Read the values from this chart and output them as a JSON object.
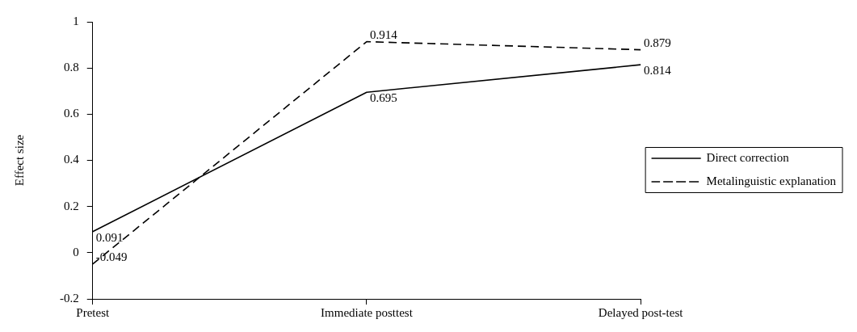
{
  "chart_data": {
    "type": "line",
    "ylabel": "Effect size",
    "categories": [
      "Pretest",
      "Immediate posttest",
      "Delayed post-test"
    ],
    "series": [
      {
        "name": "Direct correction",
        "color": "#000000",
        "line_style": "solid",
        "values": [
          0.091,
          0.695,
          0.814
        ]
      },
      {
        "name": "Metalinguistic explanation",
        "color": "#000000",
        "line_style": "dashed",
        "values": [
          -0.049,
          0.914,
          0.879
        ]
      }
    ],
    "ylim": [
      -0.2,
      1
    ],
    "yticks": [
      -0.2,
      0,
      0.2,
      0.4,
      0.6,
      0.8,
      1
    ],
    "data_labels": true,
    "grid": false,
    "legend": "right",
    "marker": "none"
  }
}
